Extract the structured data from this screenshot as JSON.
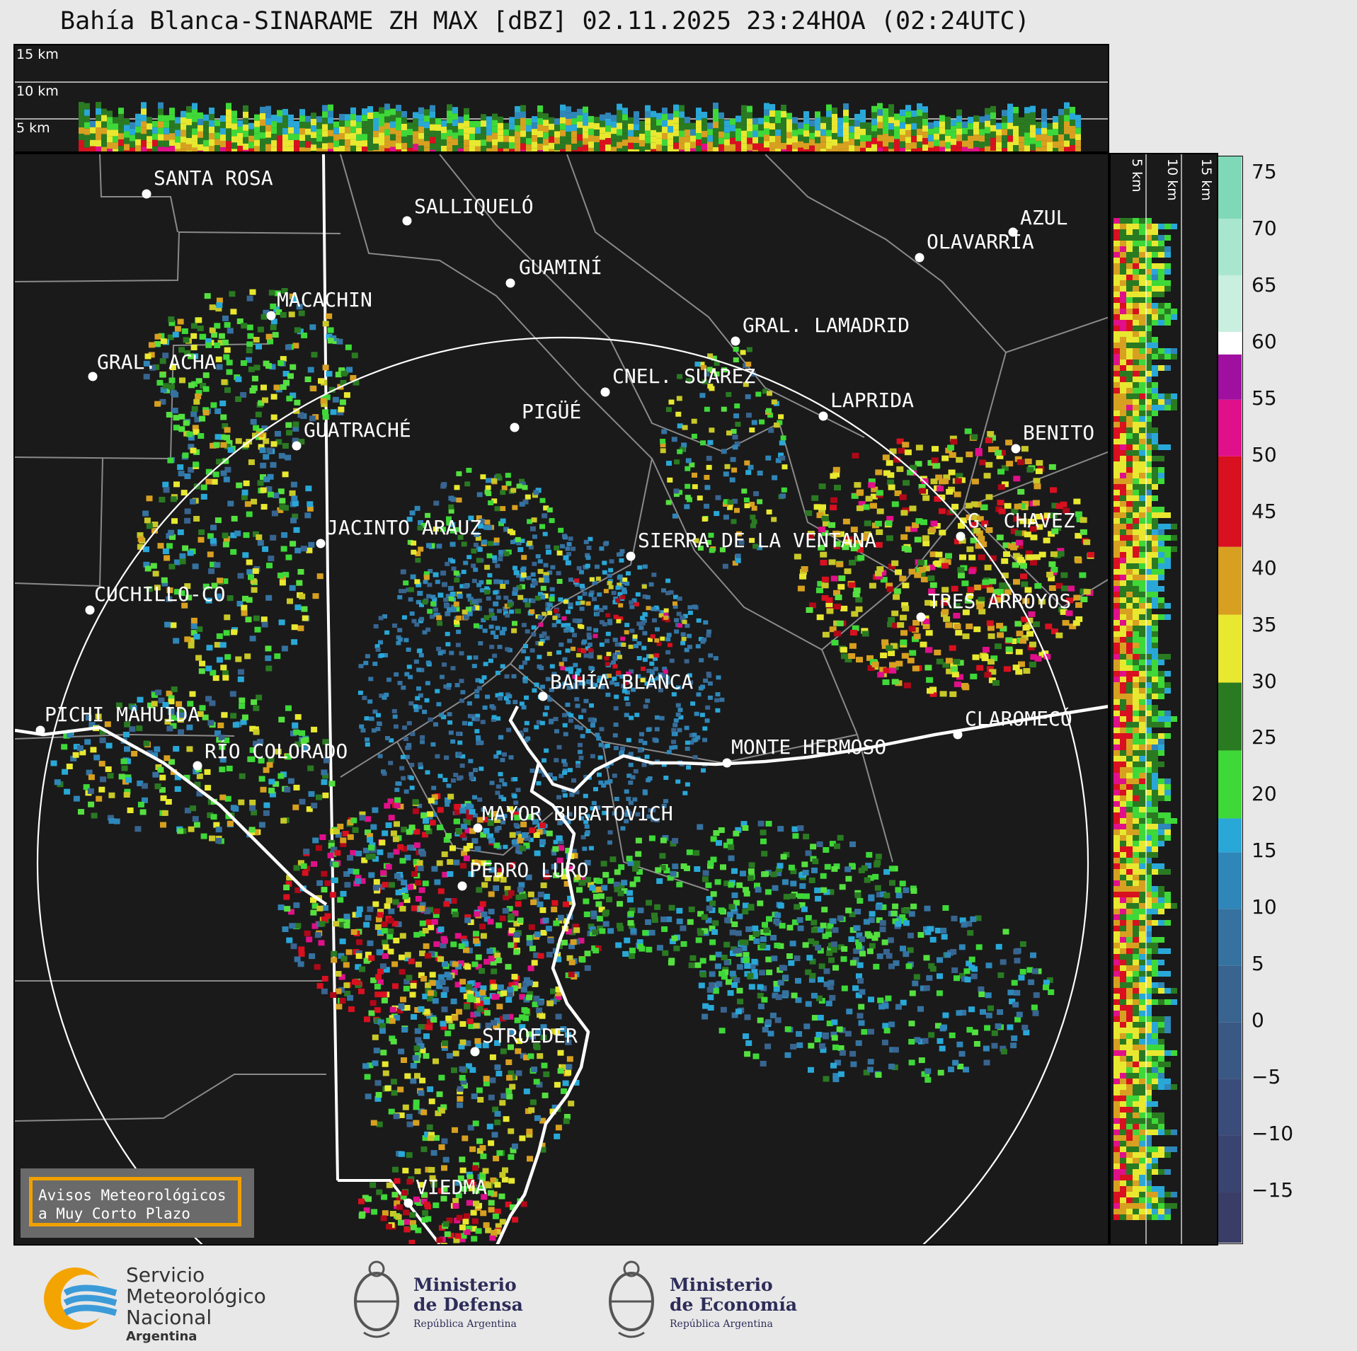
{
  "title": "Bahía Blanca-SINARAME ZH MAX [dBZ] 02.11.2025 23:24HOA (02:24UTC)",
  "top_panel": {
    "altitude_labels": [
      "15 km",
      "10 km",
      "5 km"
    ]
  },
  "side_panel": {
    "altitude_labels": [
      "5 km",
      "10 km",
      "15 km"
    ]
  },
  "colorbar": {
    "ticks": [
      "75",
      "70",
      "65",
      "60",
      "55",
      "50",
      "45",
      "40",
      "35",
      "30",
      "25",
      "20",
      "15",
      "10",
      "5",
      "0",
      "−5",
      "−10",
      "−15"
    ],
    "range": [
      -19.5,
      76.5
    ],
    "stops": [
      {
        "from": -19.5,
        "to": -15,
        "color": "#3a3d66"
      },
      {
        "from": -15,
        "to": -10,
        "color": "#3a4470"
      },
      {
        "from": -10,
        "to": -5,
        "color": "#3a4d7a"
      },
      {
        "from": -5,
        "to": 0,
        "color": "#3a5884"
      },
      {
        "from": 0,
        "to": 5,
        "color": "#38648f"
      },
      {
        "from": 5,
        "to": 10,
        "color": "#3572a0"
      },
      {
        "from": 10,
        "to": 15,
        "color": "#2f86b8"
      },
      {
        "from": 15,
        "to": 18,
        "color": "#29a8d8"
      },
      {
        "from": 18,
        "to": 24,
        "color": "#3ed838"
      },
      {
        "from": 24,
        "to": 30,
        "color": "#2a7a22"
      },
      {
        "from": 30,
        "to": 36,
        "color": "#e8e830"
      },
      {
        "from": 36,
        "to": 42,
        "color": "#d8a020"
      },
      {
        "from": 42,
        "to": 50,
        "color": "#d81020"
      },
      {
        "from": 50,
        "to": 55,
        "color": "#e0108a"
      },
      {
        "from": 55,
        "to": 59,
        "color": "#a010a0"
      },
      {
        "from": 59,
        "to": 61,
        "color": "#ffffff"
      },
      {
        "from": 61,
        "to": 66,
        "color": "#c8efe0"
      },
      {
        "from": 66,
        "to": 71,
        "color": "#a8e6cf"
      },
      {
        "from": 71,
        "to": 76.5,
        "color": "#7fd8b8"
      }
    ]
  },
  "cities": [
    {
      "name": "SANTA ROSA"
    },
    {
      "name": "SALLIQUELÓ"
    },
    {
      "name": "AZUL"
    },
    {
      "name": "OLAVARRÍA"
    },
    {
      "name": "GUAMINÍ"
    },
    {
      "name": "MACACHIN"
    },
    {
      "name": "GRAL. LAMADRID"
    },
    {
      "name": "GRAL. ACHA"
    },
    {
      "name": "CNEL. SUAREZ"
    },
    {
      "name": "LAPRIDA"
    },
    {
      "name": "PIGÜÉ"
    },
    {
      "name": "GUATRACHÉ"
    },
    {
      "name": "BENITO"
    },
    {
      "name": "G. CHAVEZ"
    },
    {
      "name": "JACINTO ARAUZ"
    },
    {
      "name": "SIERRA DE LA VENTANA"
    },
    {
      "name": "CUCHILLO-CO"
    },
    {
      "name": "TRES ARROYOS"
    },
    {
      "name": "BAHÍA BLANCA"
    },
    {
      "name": "PICHI MAHUIDA"
    },
    {
      "name": "CLAROMECÓ"
    },
    {
      "name": "MONTE HERMOSO"
    },
    {
      "name": "RÍO COLORADO"
    },
    {
      "name": "MAYOR BURATOVICH"
    },
    {
      "name": "PEDRO LURO"
    },
    {
      "name": "STROEDER"
    },
    {
      "name": "VIEDMA"
    }
  ],
  "avisos": {
    "line1": "Avisos Meteorológicos",
    "line2": "a Muy Corto Plazo"
  },
  "footer": {
    "smn": {
      "line1": "Servicio",
      "line2": "Meteorológico",
      "line3": "Nacional",
      "line4": "Argentina"
    },
    "defensa": {
      "line1": "Ministerio",
      "line2": "de Defensa",
      "line3": "República Argentina"
    },
    "economia": {
      "line1": "Ministerio",
      "line2": "de Economía",
      "line3": "República Argentina"
    }
  }
}
